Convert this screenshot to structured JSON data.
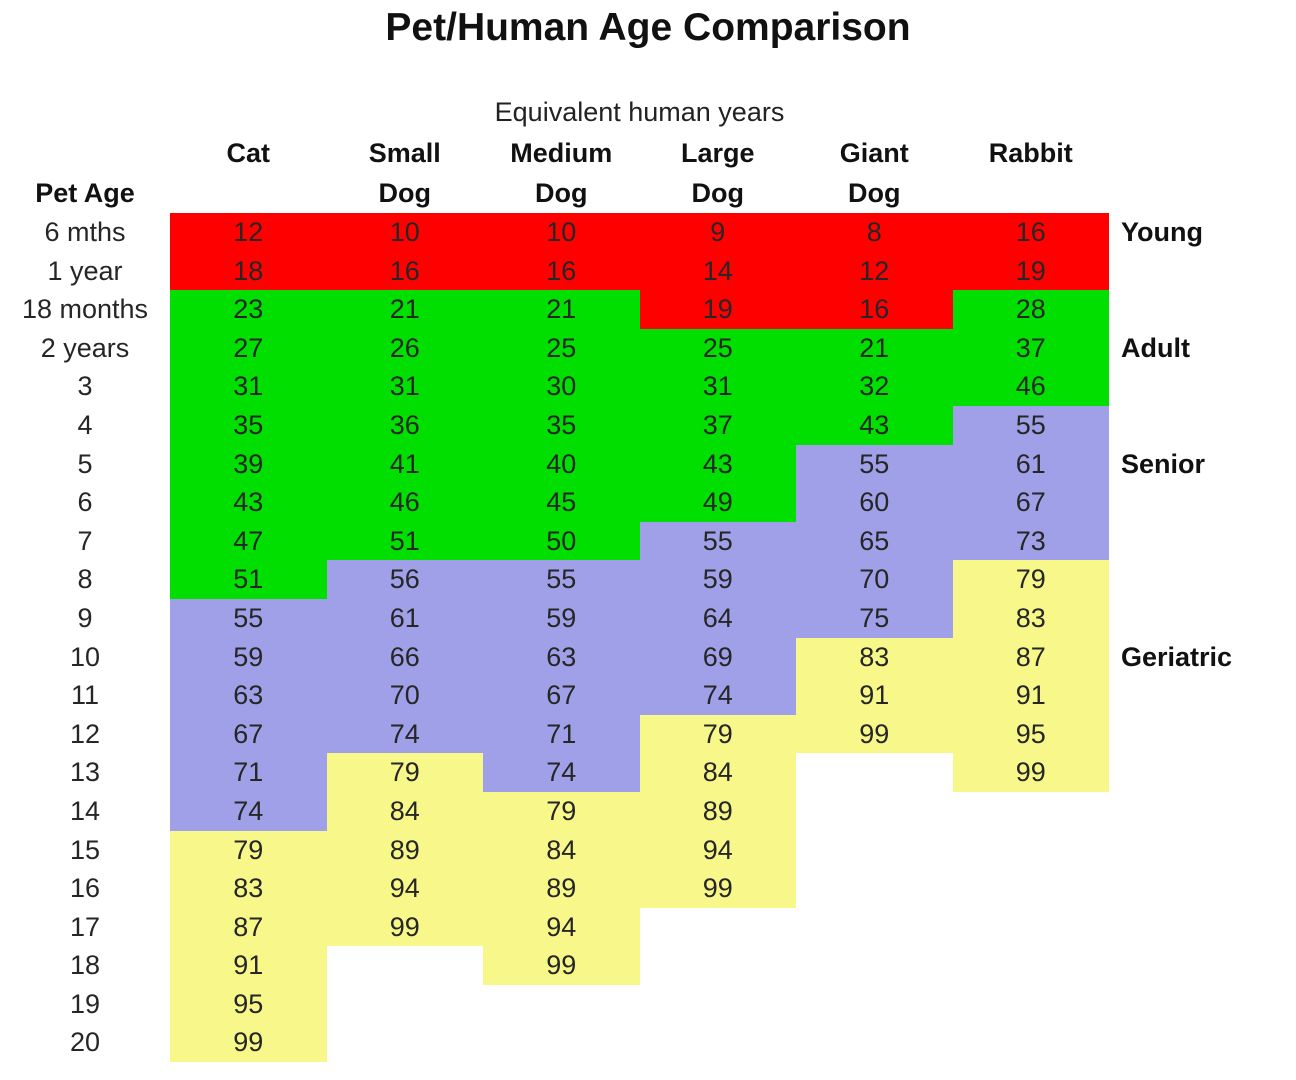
{
  "title": "Pet/Human Age Comparison",
  "chart_data": {
    "type": "heatmap",
    "title": "Pet/Human Age Comparison",
    "subtitle": "Equivalent human years",
    "row_header": "Pet Age",
    "columns": [
      {
        "label": "Cat",
        "label2": ""
      },
      {
        "label": "Small",
        "label2": "Dog"
      },
      {
        "label": "Medium",
        "label2": "Dog"
      },
      {
        "label": "Large",
        "label2": "Dog"
      },
      {
        "label": "Giant",
        "label2": "Dog"
      },
      {
        "label": "Rabbit",
        "label2": ""
      }
    ],
    "stage_colors": {
      "young": "#FF0000",
      "adult": "#00DF00",
      "senior": "#A0A0E8",
      "geriatric": "#F8F88A",
      "none": "#FFFFFF"
    },
    "stage_labels": [
      {
        "label": "Young",
        "row_index": 0
      },
      {
        "label": "Adult",
        "row_index": 3
      },
      {
        "label": "Senior",
        "row_index": 6
      },
      {
        "label": "Geriatric",
        "row_index": 11
      }
    ],
    "rows": [
      {
        "age": "6 mths",
        "values": [
          12,
          10,
          10,
          9,
          8,
          16
        ],
        "stages": [
          "young",
          "young",
          "young",
          "young",
          "young",
          "young"
        ]
      },
      {
        "age": "1 year",
        "values": [
          18,
          16,
          16,
          14,
          12,
          19
        ],
        "stages": [
          "young",
          "young",
          "young",
          "young",
          "young",
          "young"
        ]
      },
      {
        "age": "18 months",
        "values": [
          23,
          21,
          21,
          19,
          16,
          28
        ],
        "stages": [
          "adult",
          "adult",
          "adult",
          "young",
          "young",
          "adult"
        ]
      },
      {
        "age": "2 years",
        "values": [
          27,
          26,
          25,
          25,
          21,
          37
        ],
        "stages": [
          "adult",
          "adult",
          "adult",
          "adult",
          "adult",
          "adult"
        ]
      },
      {
        "age": "3",
        "values": [
          31,
          31,
          30,
          31,
          32,
          46
        ],
        "stages": [
          "adult",
          "adult",
          "adult",
          "adult",
          "adult",
          "adult"
        ]
      },
      {
        "age": "4",
        "values": [
          35,
          36,
          35,
          37,
          43,
          55
        ],
        "stages": [
          "adult",
          "adult",
          "adult",
          "adult",
          "adult",
          "senior"
        ]
      },
      {
        "age": "5",
        "values": [
          39,
          41,
          40,
          43,
          55,
          61
        ],
        "stages": [
          "adult",
          "adult",
          "adult",
          "adult",
          "senior",
          "senior"
        ]
      },
      {
        "age": "6",
        "values": [
          43,
          46,
          45,
          49,
          60,
          67
        ],
        "stages": [
          "adult",
          "adult",
          "adult",
          "adult",
          "senior",
          "senior"
        ]
      },
      {
        "age": "7",
        "values": [
          47,
          51,
          50,
          55,
          65,
          73
        ],
        "stages": [
          "adult",
          "adult",
          "adult",
          "senior",
          "senior",
          "senior"
        ]
      },
      {
        "age": "8",
        "values": [
          51,
          56,
          55,
          59,
          70,
          79
        ],
        "stages": [
          "adult",
          "senior",
          "senior",
          "senior",
          "senior",
          "geriatric"
        ]
      },
      {
        "age": "9",
        "values": [
          55,
          61,
          59,
          64,
          75,
          83
        ],
        "stages": [
          "senior",
          "senior",
          "senior",
          "senior",
          "senior",
          "geriatric"
        ]
      },
      {
        "age": "10",
        "values": [
          59,
          66,
          63,
          69,
          83,
          87
        ],
        "stages": [
          "senior",
          "senior",
          "senior",
          "senior",
          "geriatric",
          "geriatric"
        ]
      },
      {
        "age": "11",
        "values": [
          63,
          70,
          67,
          74,
          91,
          91
        ],
        "stages": [
          "senior",
          "senior",
          "senior",
          "senior",
          "geriatric",
          "geriatric"
        ]
      },
      {
        "age": "12",
        "values": [
          67,
          74,
          71,
          79,
          99,
          95
        ],
        "stages": [
          "senior",
          "senior",
          "senior",
          "geriatric",
          "geriatric",
          "geriatric"
        ]
      },
      {
        "age": "13",
        "values": [
          71,
          79,
          74,
          84,
          null,
          99
        ],
        "stages": [
          "senior",
          "geriatric",
          "senior",
          "geriatric",
          "none",
          "geriatric"
        ]
      },
      {
        "age": "14",
        "values": [
          74,
          84,
          79,
          89,
          null,
          null
        ],
        "stages": [
          "senior",
          "geriatric",
          "geriatric",
          "geriatric",
          "none",
          "none"
        ]
      },
      {
        "age": "15",
        "values": [
          79,
          89,
          84,
          94,
          null,
          null
        ],
        "stages": [
          "geriatric",
          "geriatric",
          "geriatric",
          "geriatric",
          "none",
          "none"
        ]
      },
      {
        "age": "16",
        "values": [
          83,
          94,
          89,
          99,
          null,
          null
        ],
        "stages": [
          "geriatric",
          "geriatric",
          "geriatric",
          "geriatric",
          "none",
          "none"
        ]
      },
      {
        "age": "17",
        "values": [
          87,
          99,
          94,
          null,
          null,
          null
        ],
        "stages": [
          "geriatric",
          "geriatric",
          "geriatric",
          "none",
          "none",
          "none"
        ]
      },
      {
        "age": "18",
        "values": [
          91,
          null,
          99,
          null,
          null,
          null
        ],
        "stages": [
          "geriatric",
          "none",
          "geriatric",
          "none",
          "none",
          "none"
        ]
      },
      {
        "age": "19",
        "values": [
          95,
          null,
          null,
          null,
          null,
          null
        ],
        "stages": [
          "geriatric",
          "none",
          "none",
          "none",
          "none",
          "none"
        ]
      },
      {
        "age": "20",
        "values": [
          99,
          null,
          null,
          null,
          null,
          null
        ],
        "stages": [
          "geriatric",
          "none",
          "none",
          "none",
          "none",
          "none"
        ]
      }
    ]
  }
}
